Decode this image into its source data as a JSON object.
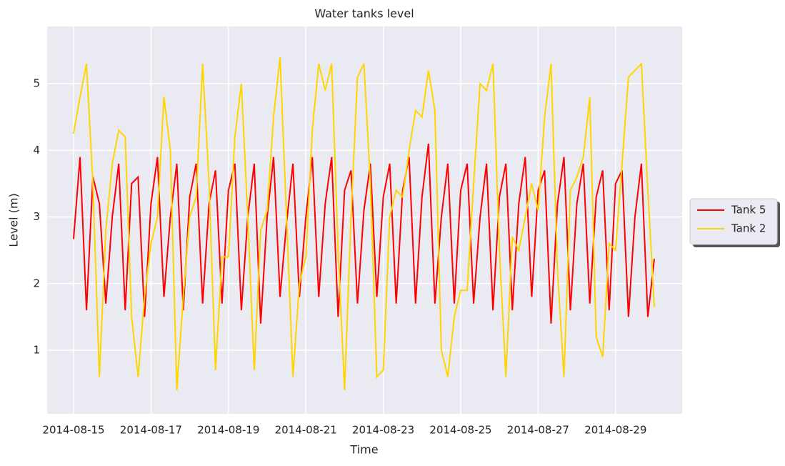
{
  "chart_data": {
    "type": "line",
    "title": "Water tanks level",
    "x_label": "Time",
    "y_label": "Level (m)",
    "categories": [
      "2014-08-15",
      null,
      null,
      null,
      null,
      null,
      null,
      null,
      null,
      null,
      null,
      null,
      "2014-08-17",
      null,
      null,
      null,
      null,
      null,
      null,
      null,
      null,
      null,
      null,
      null,
      "2014-08-19",
      null,
      null,
      null,
      null,
      null,
      null,
      null,
      null,
      null,
      null,
      null,
      "2014-08-21",
      null,
      null,
      null,
      null,
      null,
      null,
      null,
      null,
      null,
      null,
      null,
      "2014-08-23",
      null,
      null,
      null,
      null,
      null,
      null,
      null,
      null,
      null,
      null,
      null,
      "2014-08-25",
      null,
      null,
      null,
      null,
      null,
      null,
      null,
      null,
      null,
      null,
      null,
      "2014-08-27",
      null,
      null,
      null,
      null,
      null,
      null,
      null,
      null,
      null,
      null,
      null,
      "2014-08-29",
      null,
      null,
      null,
      null,
      null,
      null
    ],
    "series": [
      {
        "name": "Tank 5",
        "color": "#ff0000",
        "values": [
          2.67,
          3.9,
          1.6,
          3.6,
          3.2,
          1.7,
          3.0,
          3.8,
          1.6,
          3.5,
          3.6,
          1.5,
          3.2,
          3.9,
          1.8,
          3.0,
          3.8,
          1.6,
          3.3,
          3.8,
          1.7,
          3.2,
          3.7,
          1.7,
          3.4,
          3.8,
          1.6,
          3.0,
          3.8,
          1.4,
          3.0,
          3.9,
          1.8,
          2.9,
          3.8,
          1.8,
          3.0,
          3.9,
          1.8,
          3.2,
          3.9,
          1.5,
          3.4,
          3.7,
          1.7,
          3.1,
          3.8,
          1.8,
          3.3,
          3.8,
          1.7,
          3.4,
          3.9,
          1.7,
          3.3,
          4.1,
          1.7,
          3.0,
          3.8,
          1.7,
          3.4,
          3.8,
          1.7,
          3.0,
          3.8,
          1.6,
          3.3,
          3.8,
          1.6,
          3.2,
          3.9,
          1.8,
          3.4,
          3.7,
          1.4,
          3.2,
          3.9,
          1.6,
          3.2,
          3.8,
          1.7,
          3.3,
          3.7,
          1.6,
          3.5,
          3.7,
          1.5,
          3.0,
          3.8,
          1.5,
          2.37
        ]
      },
      {
        "name": "Tank 2",
        "color": "#ffd500",
        "values": [
          4.25,
          4.8,
          5.3,
          3.5,
          0.6,
          2.8,
          3.8,
          4.3,
          4.2,
          1.5,
          0.6,
          1.8,
          2.6,
          3.0,
          4.8,
          4.0,
          0.4,
          1.8,
          3.0,
          3.3,
          5.3,
          3.5,
          0.7,
          2.4,
          2.4,
          4.2,
          5.0,
          3.0,
          0.7,
          2.8,
          3.1,
          4.5,
          5.4,
          3.0,
          0.6,
          2.0,
          2.4,
          4.3,
          5.3,
          4.9,
          5.3,
          2.5,
          0.4,
          3.0,
          5.1,
          5.3,
          3.5,
          0.6,
          0.7,
          3.0,
          3.4,
          3.3,
          4.0,
          4.6,
          4.5,
          5.2,
          4.6,
          1.0,
          0.6,
          1.5,
          1.9,
          1.9,
          3.5,
          5.0,
          4.9,
          5.3,
          2.5,
          0.6,
          2.7,
          2.5,
          3.0,
          3.5,
          3.1,
          4.5,
          5.3,
          2.2,
          0.6,
          3.4,
          3.6,
          3.9,
          4.8,
          1.2,
          0.9,
          2.6,
          2.5,
          3.8,
          5.1,
          5.2,
          5.3,
          3.4,
          1.65
        ]
      }
    ],
    "ylim": [
      0.045,
      5.86
    ],
    "yticks": [
      1,
      2,
      3,
      4,
      5
    ],
    "grid": true,
    "legend": "right"
  }
}
